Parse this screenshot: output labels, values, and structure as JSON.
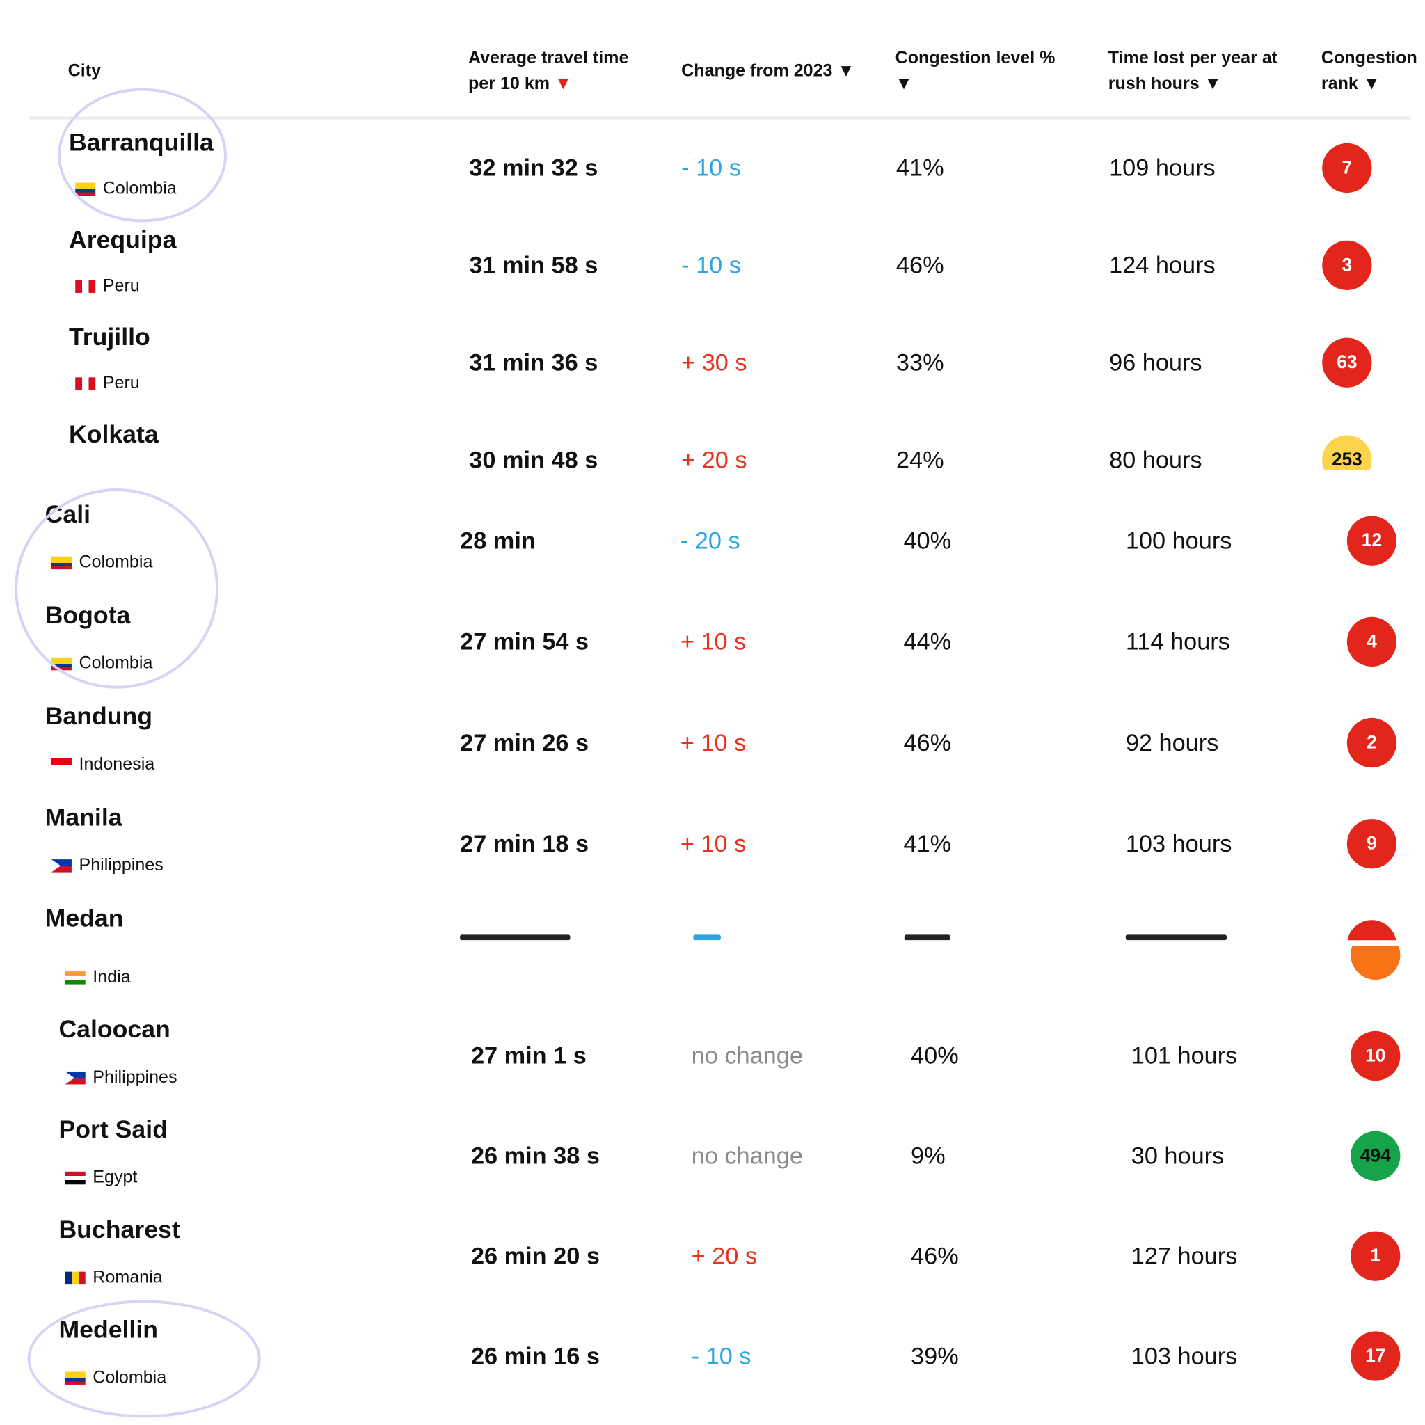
{
  "columns": {
    "city": "City",
    "avg_line1": "Average travel time",
    "avg_line2": "per 10 km",
    "change": "Change from 2023",
    "congestion": "Congestion level %",
    "timelost_line1": "Time lost per year at",
    "timelost_line2": "rush hours",
    "rank_line1": "Congestion",
    "rank_line2": "rank",
    "sort_arrow": "▼"
  },
  "colors": {
    "rank_red": "#e3261b",
    "rank_yellow": "#fcd34d",
    "rank_green": "#16a34a",
    "rank_orange": "#f97316",
    "change_down": "#2ba6e0",
    "change_up": "#e8321e",
    "change_none": "#8a8a8a",
    "highlight_circle": "#d4d4f6"
  },
  "rows": [
    {
      "city": "Barranquilla",
      "country": "Colombia",
      "flag": "colombia-flag-icon",
      "avg": "32 min 32 s",
      "change": "- 10 s",
      "change_dir": "down",
      "congestion": "41%",
      "timelost": "109 hours",
      "rank": "7",
      "rank_color": "red"
    },
    {
      "city": "Arequipa",
      "country": "Peru",
      "flag": "peru-flag-icon",
      "avg": "31 min 58 s",
      "change": "- 10 s",
      "change_dir": "down",
      "congestion": "46%",
      "timelost": "124 hours",
      "rank": "3",
      "rank_color": "red"
    },
    {
      "city": "Trujillo",
      "country": "Peru",
      "flag": "peru-flag-icon",
      "avg": "31 min 36 s",
      "change": "+ 30 s",
      "change_dir": "up",
      "congestion": "33%",
      "timelost": "96 hours",
      "rank": "63",
      "rank_color": "red"
    },
    {
      "city": "Kolkata",
      "country": "",
      "flag": "",
      "avg": "30 min 48 s",
      "change": "+ 20 s",
      "change_dir": "up",
      "congestion": "24%",
      "timelost": "80 hours",
      "rank": "253",
      "rank_color": "yellow"
    },
    {
      "city": "Cali",
      "country": "Colombia",
      "flag": "colombia-flag-icon",
      "avg": "28 min",
      "change": "- 20 s",
      "change_dir": "down",
      "congestion": "40%",
      "timelost": "100 hours",
      "rank": "12",
      "rank_color": "red"
    },
    {
      "city": "Bogota",
      "country": "Colombia",
      "flag": "colombia-flag-icon",
      "avg": "27 min 54 s",
      "change": "+ 10 s",
      "change_dir": "up",
      "congestion": "44%",
      "timelost": "114 hours",
      "rank": "4",
      "rank_color": "red"
    },
    {
      "city": "Bandung",
      "country": "Indonesia",
      "flag": "indonesia-flag-icon",
      "avg": "27 min 26 s",
      "change": "+ 10 s",
      "change_dir": "up",
      "congestion": "46%",
      "timelost": "92 hours",
      "rank": "2",
      "rank_color": "red"
    },
    {
      "city": "Manila",
      "country": "Philippines",
      "flag": "philippines-flag-icon",
      "avg": "27 min 18 s",
      "change": "+ 10 s",
      "change_dir": "up",
      "congestion": "41%",
      "timelost": "103 hours",
      "rank": "9",
      "rank_color": "red"
    },
    {
      "city": "Medan",
      "country": "",
      "flag": "",
      "avg": "",
      "change": "",
      "change_dir": "down",
      "congestion": "",
      "timelost": "",
      "rank": "",
      "rank_color": "red"
    },
    {
      "city": "",
      "country": "India",
      "flag": "india-flag-icon",
      "avg": "",
      "change": "",
      "change_dir": "none",
      "congestion": "",
      "timelost": "",
      "rank": "",
      "rank_color": "orange"
    },
    {
      "city": "Caloocan",
      "country": "Philippines",
      "flag": "philippines-flag-icon",
      "avg": "27 min 1 s",
      "change": "no change",
      "change_dir": "none",
      "congestion": "40%",
      "timelost": "101 hours",
      "rank": "10",
      "rank_color": "red"
    },
    {
      "city": "Port Said",
      "country": "Egypt",
      "flag": "egypt-flag-icon",
      "avg": "26 min 38 s",
      "change": "no change",
      "change_dir": "none",
      "congestion": "9%",
      "timelost": "30 hours",
      "rank": "494",
      "rank_color": "green"
    },
    {
      "city": "Bucharest",
      "country": "Romania",
      "flag": "romania-flag-icon",
      "avg": "26 min 20 s",
      "change": "+ 20 s",
      "change_dir": "up",
      "congestion": "46%",
      "timelost": "127 hours",
      "rank": "1",
      "rank_color": "red"
    },
    {
      "city": "Medellin",
      "country": "Colombia",
      "flag": "colombia-flag-icon",
      "avg": "26 min 16 s",
      "change": "- 10 s",
      "change_dir": "down",
      "congestion": "39%",
      "timelost": "103 hours",
      "rank": "17",
      "rank_color": "red"
    }
  ]
}
